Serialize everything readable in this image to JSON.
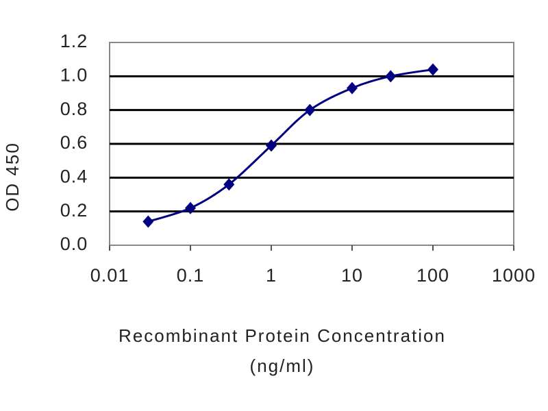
{
  "chart_data": {
    "type": "line",
    "ylabel": "OD 450",
    "xlabel": [
      "Recombinant Protein Concentration",
      "(ng/ml)"
    ],
    "x": [
      0.03,
      0.1,
      0.3,
      1,
      3,
      10,
      30,
      100
    ],
    "series": [
      {
        "name": "OD 450",
        "color": "#000080",
        "values": [
          0.14,
          0.22,
          0.36,
          0.59,
          0.8,
          0.93,
          1.0,
          1.04
        ]
      }
    ],
    "xscale": "log",
    "xlim": [
      0.01,
      1000
    ],
    "xticks": [
      0.01,
      0.1,
      1,
      10,
      100,
      1000
    ],
    "ylim": [
      0,
      1.2
    ],
    "yticks": [
      {
        "value": 0,
        "label": "0.0"
      },
      0.2,
      0.4,
      0.6,
      0.8,
      {
        "value": 1,
        "label": "1.0"
      },
      1.2
    ],
    "grid": true
  }
}
